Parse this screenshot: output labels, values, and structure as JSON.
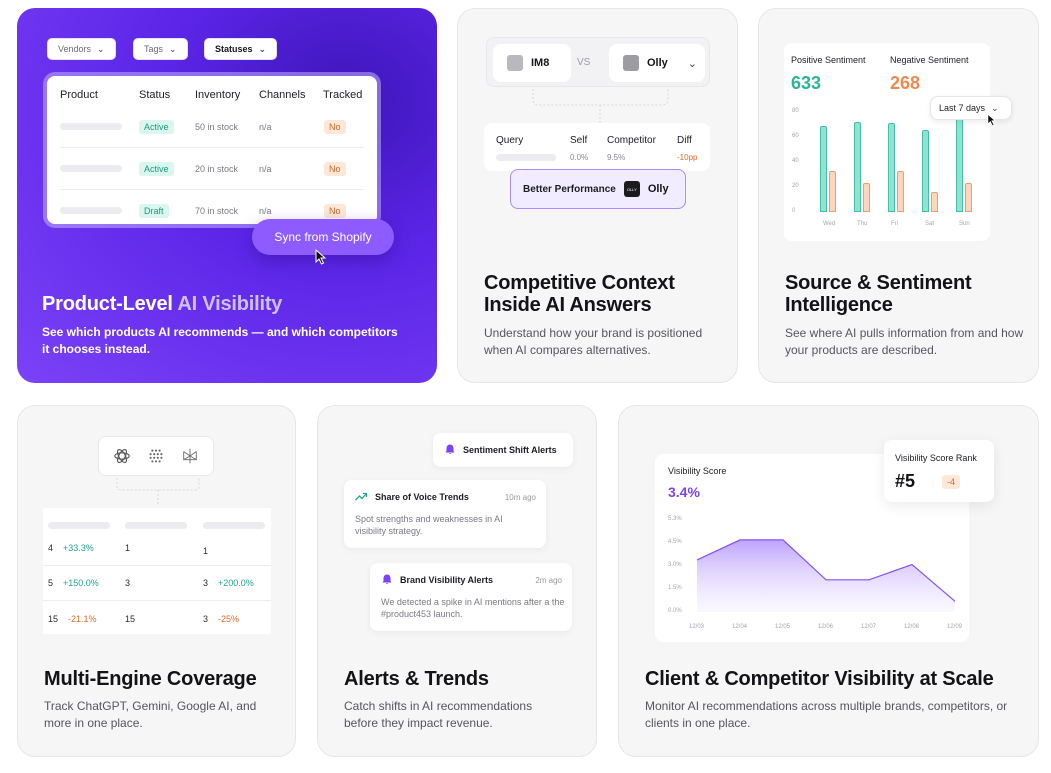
{
  "card1": {
    "filters": [
      "Vendors",
      "Tags",
      "Statuses"
    ],
    "headers": [
      "Product",
      "Status",
      "Inventory",
      "Channels",
      "Tracked"
    ],
    "rows": [
      {
        "status": "Active",
        "inventory": "50 in stock",
        "channels": "n/a",
        "tracked": "No"
      },
      {
        "status": "Active",
        "inventory": "20 in stock",
        "channels": "n/a",
        "tracked": "No"
      },
      {
        "status": "Draft",
        "inventory": "70 in stock",
        "channels": "n/a",
        "tracked": "No"
      }
    ],
    "sync_label": "Sync from Shopify",
    "title_main": "Product-Level ",
    "title_dim": "AI Visibility",
    "desc": "See which products AI recommends — and which competitors it chooses instead."
  },
  "card2": {
    "brand_self": "IM8",
    "vs": "VS",
    "brand_comp": "Olly",
    "headers": [
      "Query",
      "Self",
      "Competitor",
      "Diff"
    ],
    "row": {
      "self": "0.0%",
      "comp": "9.5%",
      "diff": "-10pp"
    },
    "better_label": "Better Performance",
    "better_brand": "Olly",
    "logo_text": "OLLY",
    "title": "Competitive Context Inside AI Answers",
    "desc": "Understand how your brand is positioned when AI compares alternatives."
  },
  "card3": {
    "pos_label": "Positive Sentiment",
    "pos_value": "633",
    "neg_label": "Negative Sentiment",
    "neg_value": "268",
    "range": "Last 7 days",
    "chart_data": {
      "type": "bar",
      "categories": [
        "Wed",
        "Thu",
        "Fri",
        "Sat",
        "Sun"
      ],
      "yticks": [
        "80",
        "60",
        "40",
        "20",
        "0"
      ],
      "ylim": [
        0,
        80
      ],
      "series": [
        {
          "values": [
            69,
            72,
            71,
            66,
            80
          ]
        },
        {
          "values": [
            33,
            23,
            33,
            16,
            23
          ]
        }
      ]
    },
    "title": "Source & Sentiment Intelligence",
    "desc": "See where AI pulls information from and how your products are described."
  },
  "card4": {
    "rows": [
      {
        "a": "4",
        "ad": "+33.3%",
        "b": "1",
        "c": "1",
        "cd": ""
      },
      {
        "a": "5",
        "ad": "+150.0%",
        "b": "3",
        "c": "3",
        "cd": "+200.0%"
      },
      {
        "a": "15",
        "ad": "-21.1%",
        "b": "15",
        "c": "3",
        "cd": "-25%"
      }
    ],
    "title": "Multi-Engine Coverage",
    "desc": "Track ChatGPT, Gemini, Google AI, and more in one place."
  },
  "card5": {
    "sentiment_alert": "Sentiment Shift Alerts",
    "sov_title": "Share of Voice Trends",
    "sov_time": "10m ago",
    "sov_body": "Spot strengths and weaknesses in AI visibility strategy.",
    "bv_title": "Brand Visibility Alerts",
    "bv_time": "2m ago",
    "bv_body": "We detected a spike in AI mentions after a the #product453 launch.",
    "title": "Alerts & Trends",
    "desc": "Catch shifts in AI recommendations before they impact revenue."
  },
  "card6": {
    "score_label": "Visibility Score",
    "score_value": "3.4%",
    "rank_label": "Visibility Score Rank",
    "rank_value": "#5",
    "rank_delta": "-4",
    "chart_data": {
      "type": "area",
      "x": [
        "12/03",
        "12/04",
        "12/05",
        "12/06",
        "12/07",
        "12/08",
        "12/09"
      ],
      "yticks": [
        "5.3%",
        "4.5%",
        "3.0%",
        "1.5%",
        "0.0%"
      ],
      "ylim": [
        0,
        6.0
      ],
      "values": [
        3.4,
        4.7,
        4.7,
        2.1,
        2.1,
        3.1,
        0.7
      ]
    },
    "title": "Client & Competitor Visibility at Scale",
    "desc": "Monitor AI recommendations across multiple brands, competitors, or clients in one place."
  },
  "colors": {
    "purple": "#7b42f8",
    "teal": "#43bfa3",
    "orange": "#ec8a4f"
  }
}
